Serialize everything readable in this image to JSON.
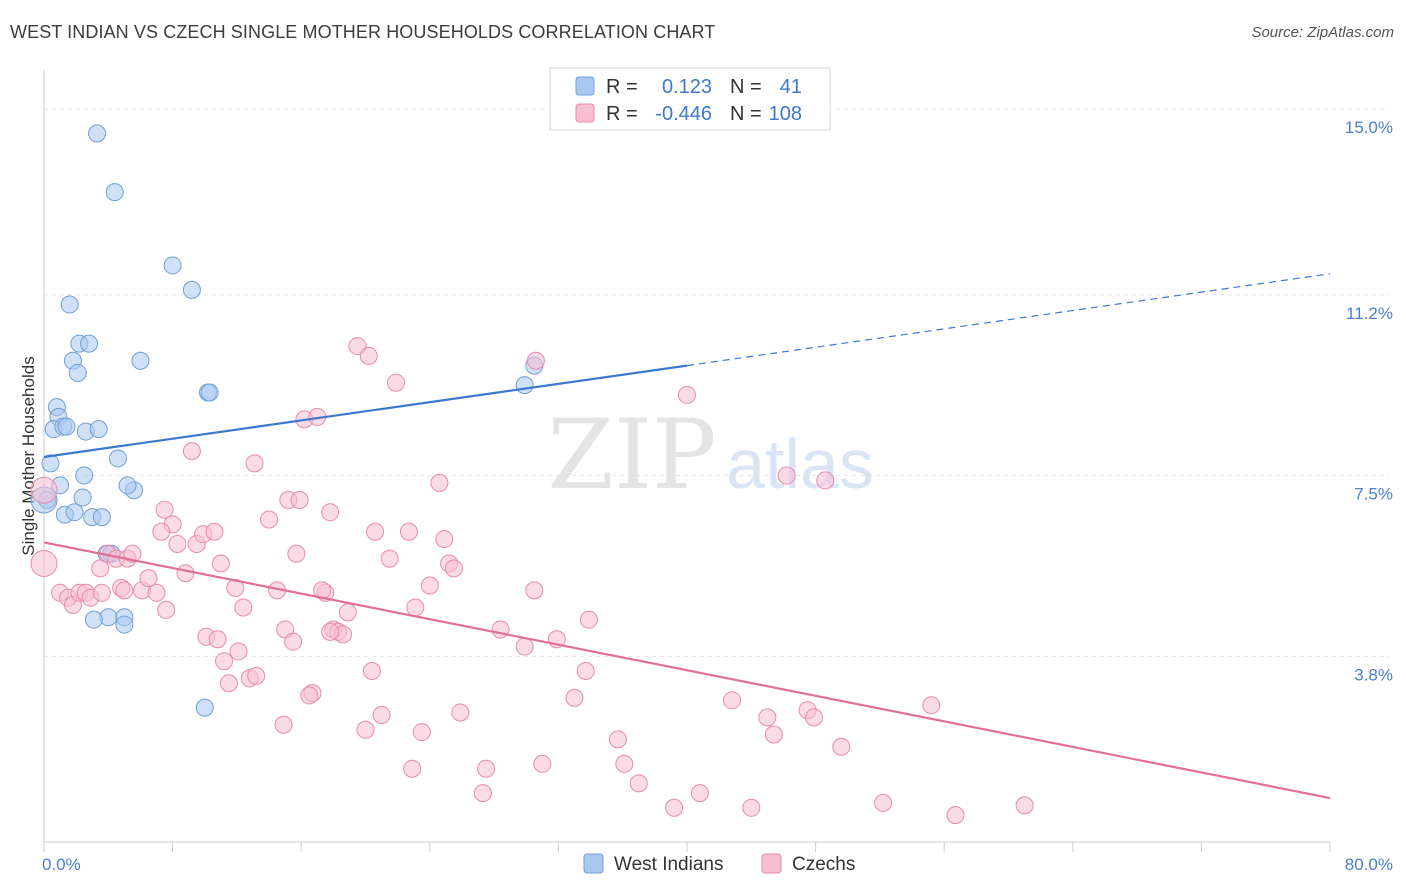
{
  "title": "WEST INDIAN VS CZECH SINGLE MOTHER HOUSEHOLDS CORRELATION CHART",
  "source": "Source: ZipAtlas.com",
  "watermark": {
    "zip": "ZIP",
    "atlas": "atlas"
  },
  "legend": {
    "rows": [
      {
        "r_label": "R =",
        "r_value": "0.123",
        "n_label": "N =",
        "n_value": "41",
        "color": "#a9c8f0",
        "stroke": "#6f9fd8"
      },
      {
        "r_label": "R =",
        "r_value": "-0.446",
        "n_label": "N =",
        "n_value": "108",
        "color": "#f8bfd2",
        "stroke": "#e98aaa"
      }
    ]
  },
  "bottom_legend": [
    {
      "label": "West Indians",
      "color": "#a9c8f0",
      "stroke": "#6f9fd8"
    },
    {
      "label": "Czechs",
      "color": "#f8bfd2",
      "stroke": "#e98aaa"
    }
  ],
  "chart_data": {
    "type": "scatter",
    "xlabel": "",
    "ylabel": "Single Mother Households",
    "xlim": [
      0,
      80
    ],
    "ylim": [
      0,
      15.8
    ],
    "x_tick_labels": [
      {
        "value": 0,
        "label": "0.0%"
      },
      {
        "value": 80,
        "label": "80.0%"
      }
    ],
    "y_ticks": [
      {
        "value": 3.8,
        "label": "3.8%"
      },
      {
        "value": 7.5,
        "label": "7.5%"
      },
      {
        "value": 11.2,
        "label": "11.2%"
      },
      {
        "value": 15.0,
        "label": "15.0%"
      }
    ],
    "x_minor_ticks": [
      0,
      8,
      16,
      24,
      32,
      40,
      48,
      56,
      64,
      72,
      80
    ],
    "series": [
      {
        "name": "West Indians",
        "color": "#a9c8f0",
        "stroke": "#6f9fd8",
        "trend": {
          "x": [
            0,
            40
          ],
          "y": [
            7.88,
            9.75
          ],
          "dashed_extension_to": [
            80,
            11.63
          ],
          "color": "#3d78d0"
        },
        "points": [
          [
            3.3,
            14.5
          ],
          [
            4.4,
            13.3
          ],
          [
            8.0,
            11.8
          ],
          [
            9.2,
            11.3
          ],
          [
            1.6,
            11.0
          ],
          [
            2.2,
            10.2
          ],
          [
            2.8,
            10.2
          ],
          [
            1.8,
            9.85
          ],
          [
            6.0,
            9.85
          ],
          [
            2.1,
            9.6
          ],
          [
            10.2,
            9.2
          ],
          [
            10.3,
            9.2
          ],
          [
            0.8,
            8.9
          ],
          [
            0.9,
            8.7
          ],
          [
            0.6,
            8.45
          ],
          [
            1.2,
            8.5
          ],
          [
            1.4,
            8.5
          ],
          [
            2.6,
            8.4
          ],
          [
            3.4,
            8.45
          ],
          [
            4.6,
            7.85
          ],
          [
            0.4,
            7.75
          ],
          [
            2.5,
            7.5
          ],
          [
            1.0,
            7.3
          ],
          [
            5.6,
            7.2
          ],
          [
            5.2,
            7.3
          ],
          [
            0.2,
            7.0
          ],
          [
            2.4,
            7.05
          ],
          [
            1.3,
            6.7
          ],
          [
            1.9,
            6.75
          ],
          [
            3.0,
            6.65
          ],
          [
            3.6,
            6.65
          ],
          [
            3.9,
            5.9
          ],
          [
            4.2,
            5.9
          ],
          [
            4.0,
            4.6
          ],
          [
            3.1,
            4.55
          ],
          [
            5.0,
            4.6
          ],
          [
            5.0,
            4.45
          ],
          [
            10.0,
            2.75
          ],
          [
            30.5,
            9.75
          ],
          [
            29.9,
            9.35
          ],
          [
            0.0,
            7.0
          ]
        ]
      },
      {
        "name": "Czechs",
        "color": "#f8bfd2",
        "stroke": "#e98aaa",
        "trend": {
          "x": [
            0,
            80
          ],
          "y": [
            6.13,
            0.9
          ],
          "color": "#e07098"
        },
        "points": [
          [
            0.0,
            7.2
          ],
          [
            0.0,
            5.7
          ],
          [
            1.0,
            5.1
          ],
          [
            1.5,
            5.0
          ],
          [
            1.8,
            4.85
          ],
          [
            2.2,
            5.1
          ],
          [
            2.6,
            5.1
          ],
          [
            2.9,
            5.0
          ],
          [
            3.5,
            5.6
          ],
          [
            3.6,
            5.1
          ],
          [
            4.0,
            5.9
          ],
          [
            4.5,
            5.8
          ],
          [
            4.8,
            5.2
          ],
          [
            5.2,
            5.8
          ],
          [
            5.5,
            5.9
          ],
          [
            5.0,
            5.15
          ],
          [
            6.1,
            5.15
          ],
          [
            6.5,
            5.4
          ],
          [
            7.0,
            5.1
          ],
          [
            7.6,
            4.75
          ],
          [
            8.0,
            6.5
          ],
          [
            7.5,
            6.8
          ],
          [
            7.3,
            6.35
          ],
          [
            8.3,
            6.1
          ],
          [
            8.8,
            5.5
          ],
          [
            9.2,
            8.0
          ],
          [
            9.5,
            6.1
          ],
          [
            9.9,
            6.3
          ],
          [
            10.6,
            6.35
          ],
          [
            11.0,
            5.7
          ],
          [
            11.9,
            5.2
          ],
          [
            12.4,
            4.8
          ],
          [
            12.1,
            3.9
          ],
          [
            11.2,
            3.7
          ],
          [
            11.5,
            3.25
          ],
          [
            12.8,
            3.35
          ],
          [
            13.2,
            3.4
          ],
          [
            10.1,
            4.2
          ],
          [
            10.8,
            4.15
          ],
          [
            13.1,
            7.75
          ],
          [
            14.0,
            6.6
          ],
          [
            14.5,
            5.15
          ],
          [
            15.0,
            4.35
          ],
          [
            15.5,
            4.1
          ],
          [
            15.2,
            7.0
          ],
          [
            15.7,
            5.9
          ],
          [
            15.9,
            7.0
          ],
          [
            16.7,
            3.05
          ],
          [
            17.5,
            5.1
          ],
          [
            16.2,
            8.65
          ],
          [
            17.0,
            8.7
          ],
          [
            17.8,
            6.75
          ],
          [
            18.0,
            4.35
          ],
          [
            18.3,
            4.3
          ],
          [
            18.6,
            4.25
          ],
          [
            18.9,
            4.7
          ],
          [
            17.3,
            5.15
          ],
          [
            19.5,
            10.15
          ],
          [
            20.2,
            9.95
          ],
          [
            20.6,
            6.35
          ],
          [
            20.4,
            3.5
          ],
          [
            21.0,
            2.6
          ],
          [
            21.5,
            5.8
          ],
          [
            21.9,
            9.4
          ],
          [
            22.7,
            6.35
          ],
          [
            23.1,
            4.8
          ],
          [
            24.0,
            5.25
          ],
          [
            24.6,
            7.35
          ],
          [
            24.9,
            6.2
          ],
          [
            25.2,
            5.7
          ],
          [
            25.5,
            5.6
          ],
          [
            25.9,
            2.65
          ],
          [
            22.9,
            1.5
          ],
          [
            23.5,
            2.25
          ],
          [
            27.3,
            1.0
          ],
          [
            27.5,
            1.5
          ],
          [
            28.4,
            4.35
          ],
          [
            29.9,
            4.0
          ],
          [
            30.5,
            5.15
          ],
          [
            30.6,
            9.85
          ],
          [
            31.0,
            1.6
          ],
          [
            31.9,
            4.15
          ],
          [
            33.0,
            2.95
          ],
          [
            33.7,
            3.5
          ],
          [
            33.9,
            4.55
          ],
          [
            35.7,
            2.1
          ],
          [
            36.1,
            1.6
          ],
          [
            37.0,
            1.2
          ],
          [
            39.2,
            0.7
          ],
          [
            40.0,
            9.15
          ],
          [
            40.8,
            1.0
          ],
          [
            42.8,
            2.9
          ],
          [
            44.0,
            0.7
          ],
          [
            45.0,
            2.55
          ],
          [
            45.4,
            2.2
          ],
          [
            46.2,
            7.5
          ],
          [
            47.5,
            2.7
          ],
          [
            47.9,
            2.55
          ],
          [
            48.6,
            7.4
          ],
          [
            49.6,
            1.95
          ],
          [
            55.2,
            2.8
          ],
          [
            56.7,
            0.55
          ],
          [
            61.0,
            0.75
          ],
          [
            52.2,
            0.8
          ],
          [
            16.5,
            3.0
          ],
          [
            20.0,
            2.3
          ],
          [
            14.9,
            2.4
          ],
          [
            17.8,
            4.3
          ]
        ]
      }
    ]
  }
}
